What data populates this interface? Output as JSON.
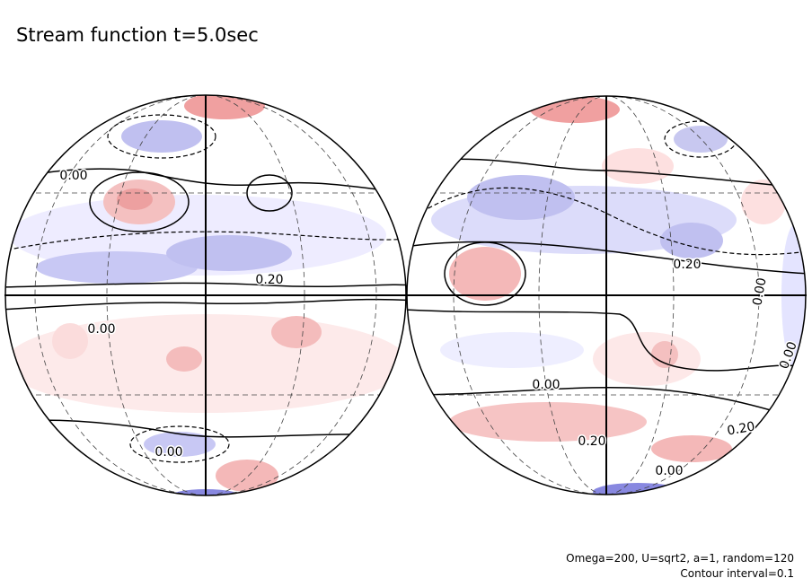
{
  "title": "Stream function t=5.0sec",
  "contour_labels": [
    "0.00",
    "0.20",
    "0.00",
    "0.00",
    "0.20",
    "0.00",
    "0.00",
    "0.00",
    "0.20",
    "0.20",
    "0.00"
  ],
  "footnote": [
    "Omega=200, U=sqrt2, a=1, random=120",
    "Contour interval=0.1"
  ]
}
